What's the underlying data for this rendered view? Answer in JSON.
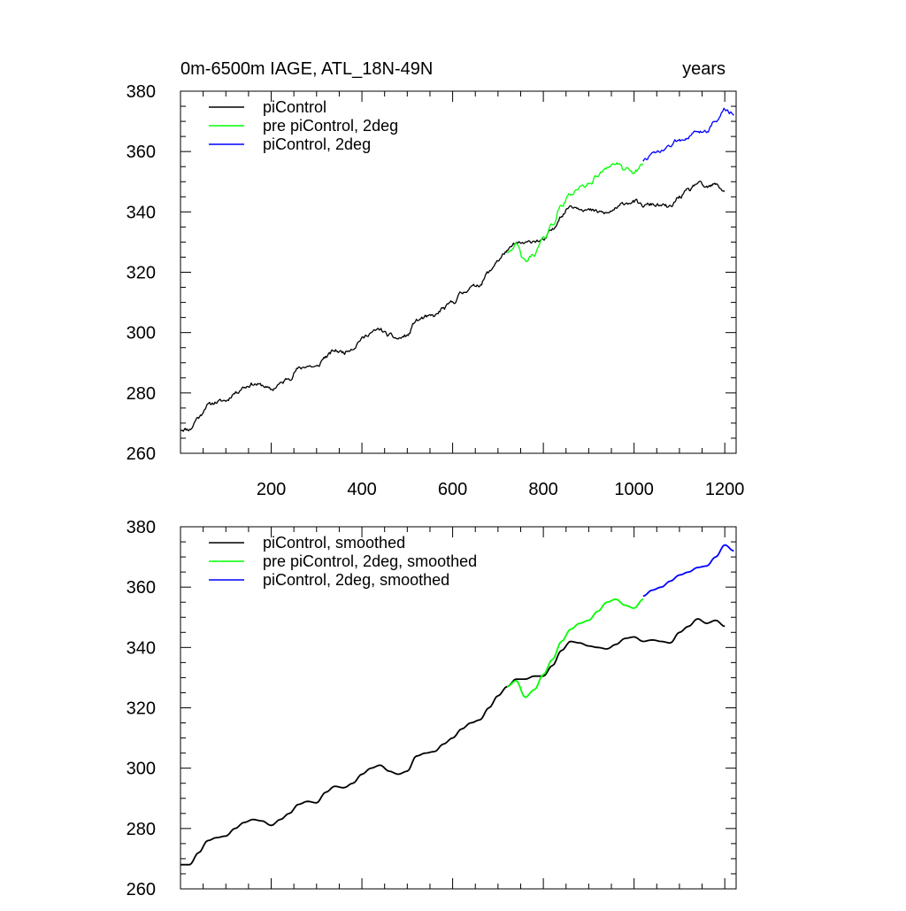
{
  "figure": {
    "title_left": "0m-6500m IAGE, ATL_18N-49N",
    "title_right": "years"
  },
  "colors": {
    "piControl": "#000000",
    "pre_piControl_2deg": "#00ff00",
    "piControl_2deg": "#0000ff"
  },
  "chart_data": [
    {
      "type": "line",
      "panel": "top",
      "xlim": [
        0,
        1225
      ],
      "ylim": [
        260,
        380
      ],
      "xticks": [
        200,
        400,
        600,
        800,
        1000,
        1200
      ],
      "xtick_labels": [
        "200",
        "400",
        "600",
        "800",
        "1000",
        "1200"
      ],
      "yticks": [
        260,
        280,
        300,
        320,
        340,
        360,
        380
      ],
      "ytick_labels": [
        "260",
        "280",
        "300",
        "320",
        "340",
        "360",
        "380"
      ],
      "legend": [
        "piControl",
        "pre piControl, 2deg",
        "piControl, 2deg"
      ],
      "legend_position": "top-left",
      "noise": true,
      "series": [
        {
          "name": "piControl",
          "color": "#000000",
          "x": [
            0,
            20,
            40,
            60,
            80,
            100,
            120,
            140,
            160,
            180,
            200,
            220,
            240,
            260,
            280,
            300,
            320,
            340,
            360,
            380,
            400,
            420,
            440,
            460,
            480,
            500,
            520,
            540,
            560,
            580,
            600,
            620,
            640,
            660,
            680,
            700,
            720,
            740,
            760,
            780,
            800,
            820,
            840,
            860,
            880,
            900,
            920,
            940,
            960,
            980,
            1000,
            1020,
            1040,
            1060,
            1080,
            1100,
            1120,
            1140,
            1160,
            1180,
            1200
          ],
          "y": [
            268,
            268,
            272,
            276,
            277,
            277.5,
            280,
            282,
            283,
            282.5,
            281,
            283,
            285,
            288,
            289,
            288.5,
            292,
            294,
            293.5,
            295,
            298,
            300,
            301,
            299,
            298,
            299,
            304,
            305,
            305.5,
            308,
            310,
            313,
            315,
            316,
            320,
            324,
            327,
            329.5,
            329.5,
            330.5,
            330.5,
            334,
            339,
            342,
            341.5,
            340.5,
            340,
            339.5,
            341,
            343,
            343.5,
            342,
            342.5,
            342,
            341.5,
            345,
            347,
            349.5,
            348,
            349,
            347
          ]
        },
        {
          "name": "pre piControl, 2deg",
          "color": "#00ff00",
          "x": [
            720,
            740,
            760,
            780,
            800,
            820,
            840,
            860,
            880,
            900,
            920,
            940,
            960,
            980,
            1000,
            1020
          ],
          "y": [
            327,
            329,
            323.5,
            326,
            331,
            336,
            342,
            346,
            348,
            349,
            352,
            355,
            356,
            354,
            353,
            356
          ]
        },
        {
          "name": "piControl, 2deg",
          "color": "#0000ff",
          "x": [
            1020,
            1040,
            1060,
            1080,
            1100,
            1120,
            1140,
            1160,
            1180,
            1200,
            1220
          ],
          "y": [
            357,
            359,
            360,
            362,
            364,
            365,
            366.5,
            367,
            370,
            374,
            372
          ]
        }
      ]
    },
    {
      "type": "line",
      "panel": "bottom",
      "xlim": [
        0,
        1225
      ],
      "ylim": [
        260,
        380
      ],
      "xticks": [
        200,
        400,
        600,
        800,
        1000,
        1200
      ],
      "xtick_labels": [],
      "yticks": [
        260,
        280,
        300,
        320,
        340,
        360,
        380
      ],
      "ytick_labels": [
        "260",
        "280",
        "300",
        "320",
        "340",
        "360",
        "380"
      ],
      "legend": [
        "piControl, smoothed",
        "pre piControl, 2deg, smoothed",
        "piControl, 2deg, smoothed"
      ],
      "legend_position": "top-left",
      "noise": false,
      "series": [
        {
          "name": "piControl, smoothed",
          "color": "#000000",
          "x": [
            0,
            20,
            40,
            60,
            80,
            100,
            120,
            140,
            160,
            180,
            200,
            220,
            240,
            260,
            280,
            300,
            320,
            340,
            360,
            380,
            400,
            420,
            440,
            460,
            480,
            500,
            520,
            540,
            560,
            580,
            600,
            620,
            640,
            660,
            680,
            700,
            720,
            740,
            760,
            780,
            800,
            820,
            840,
            860,
            880,
            900,
            920,
            940,
            960,
            980,
            1000,
            1020,
            1040,
            1060,
            1080,
            1100,
            1120,
            1140,
            1160,
            1180,
            1200
          ],
          "y": [
            268,
            268,
            272,
            276,
            277,
            277.5,
            280,
            282,
            283,
            282.5,
            281,
            283,
            285,
            288,
            289,
            288.5,
            292,
            294,
            293.5,
            295,
            298,
            300,
            301,
            299,
            298,
            299,
            304,
            305,
            305.5,
            308,
            310,
            313,
            315,
            316,
            320,
            324,
            327,
            329.5,
            329.5,
            330.5,
            330.5,
            334,
            339,
            342,
            341.5,
            340.5,
            340,
            339.5,
            341,
            343,
            343.5,
            342,
            342.5,
            342,
            341.5,
            345,
            347,
            349.5,
            348,
            349,
            347
          ]
        },
        {
          "name": "pre piControl, 2deg, smoothed",
          "color": "#00ff00",
          "x": [
            720,
            740,
            760,
            780,
            800,
            820,
            840,
            860,
            880,
            900,
            920,
            940,
            960,
            980,
            1000,
            1020
          ],
          "y": [
            327,
            329,
            323.5,
            326,
            331,
            336,
            342,
            346,
            348,
            349,
            352,
            355,
            356,
            354,
            353,
            356
          ]
        },
        {
          "name": "piControl, 2deg, smoothed",
          "color": "#0000ff",
          "x": [
            1020,
            1040,
            1060,
            1080,
            1100,
            1120,
            1140,
            1160,
            1180,
            1200,
            1220
          ],
          "y": [
            357,
            359,
            360,
            362,
            364,
            365,
            366.5,
            367,
            370,
            374,
            372
          ]
        }
      ]
    }
  ]
}
